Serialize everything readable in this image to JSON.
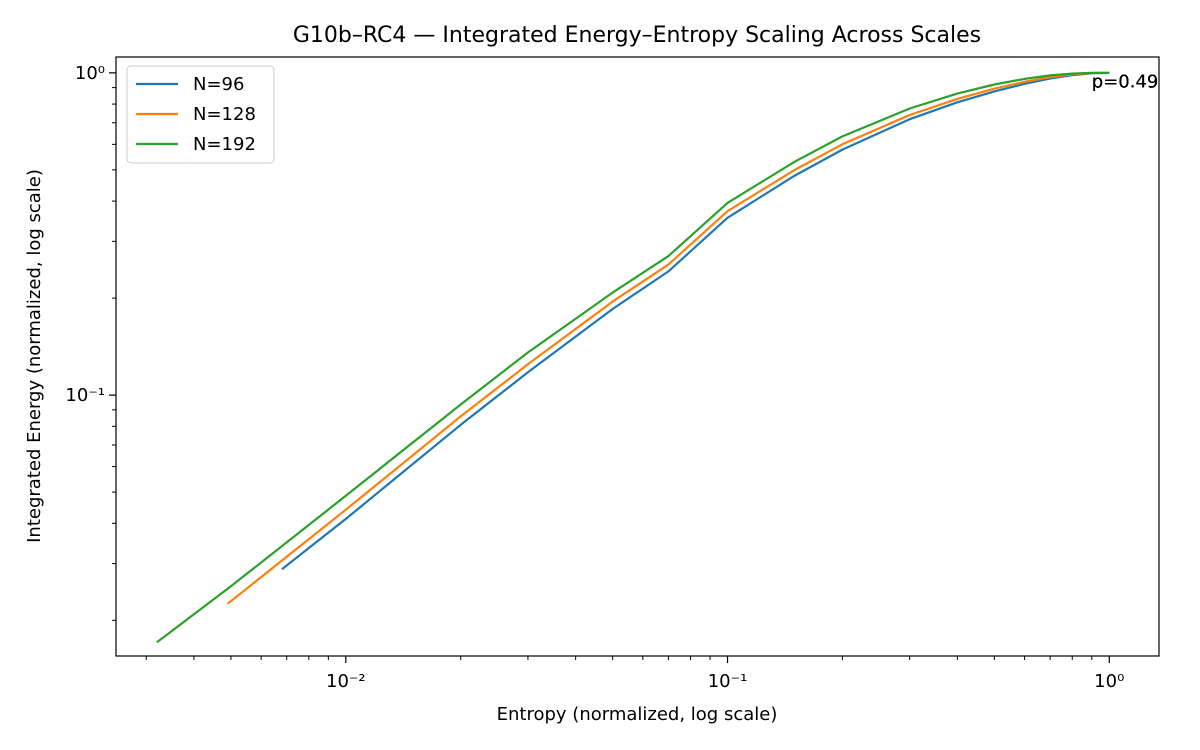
{
  "chart_data": {
    "type": "line",
    "title": "G10b–RC4 — Integrated Energy–Entropy Scaling Across Scales",
    "xlabel": "Entropy (normalized, log scale)",
    "ylabel": "Integrated Energy (normalized, log scale)",
    "xscale": "log",
    "yscale": "log",
    "xlim": [
      0.0025,
      1.35
    ],
    "ylim": [
      0.0155,
      1.12
    ],
    "x_ticks": [
      {
        "value": 0.01,
        "label": "10⁻²"
      },
      {
        "value": 0.1,
        "label": "10⁻¹"
      },
      {
        "value": 1,
        "label": "10⁰"
      }
    ],
    "y_ticks": [
      {
        "value": 0.1,
        "label": "10⁻¹"
      },
      {
        "value": 1,
        "label": "10⁰"
      }
    ],
    "grid": false,
    "legend": "top-left",
    "series": [
      {
        "name": "N=96",
        "color": "#1f77b4",
        "x": [
          0.0068,
          0.01,
          0.02,
          0.03,
          0.05,
          0.07,
          0.1,
          0.15,
          0.2,
          0.3,
          0.4,
          0.5,
          0.6,
          0.7,
          0.8,
          0.9,
          1.0
        ],
        "y": [
          0.0288,
          0.0413,
          0.0809,
          0.1177,
          0.185,
          0.242,
          0.355,
          0.48,
          0.578,
          0.718,
          0.81,
          0.876,
          0.925,
          0.96,
          0.984,
          0.997,
          1.0
        ]
      },
      {
        "name": "N=128",
        "color": "#ff7f0e",
        "x": [
          0.0049,
          0.01,
          0.02,
          0.03,
          0.05,
          0.07,
          0.1,
          0.15,
          0.2,
          0.3,
          0.4,
          0.5,
          0.6,
          0.7,
          0.8,
          0.9,
          1.0
        ],
        "y": [
          0.0225,
          0.0441,
          0.0859,
          0.1246,
          0.195,
          0.254,
          0.372,
          0.5,
          0.6,
          0.74,
          0.83,
          0.893,
          0.938,
          0.97,
          0.99,
          0.999,
          1.0
        ]
      },
      {
        "name": "N=192",
        "color": "#2ca02c",
        "x": [
          0.0032,
          0.005,
          0.01,
          0.02,
          0.03,
          0.05,
          0.07,
          0.1,
          0.15,
          0.2,
          0.3,
          0.4,
          0.5,
          0.6,
          0.7,
          0.8,
          0.9,
          1.0
        ],
        "y": [
          0.0171,
          0.0255,
          0.0487,
          0.0935,
          0.1356,
          0.208,
          0.27,
          0.395,
          0.53,
          0.635,
          0.775,
          0.862,
          0.92,
          0.958,
          0.982,
          0.995,
          1.0,
          1.0
        ]
      }
    ],
    "annotations": [
      {
        "text": "p=0.49",
        "x": 0.9,
        "y": 0.94
      },
      {
        "text": "p=0.49",
        "x": 0.9,
        "y": 0.94
      },
      {
        "text": "p=0.49",
        "x": 0.9,
        "y": 0.94
      }
    ]
  }
}
